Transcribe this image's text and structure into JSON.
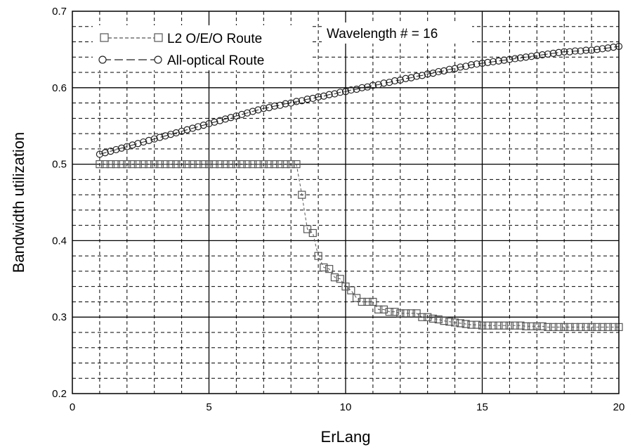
{
  "chart_data": {
    "type": "scatter",
    "xlabel": "ErLang",
    "ylabel": "Bandwidth utilization",
    "xlim": [
      0,
      20
    ],
    "ylim": [
      0.2,
      0.7
    ],
    "xticks": [
      "0",
      "5",
      "10",
      "15",
      "20"
    ],
    "yticks": [
      "0.2",
      "0.3",
      "0.4",
      "0.5",
      "0.6",
      "0.7"
    ],
    "grid": true,
    "legend_position": "top-left",
    "annotation": "Wavelength # = 16",
    "series": [
      {
        "name": "L2 O/E/O Route",
        "marker": "square",
        "line_style": "dashed",
        "color": "#555555",
        "x": [
          1.0,
          1.2,
          1.4,
          1.6,
          1.8,
          2.0,
          2.2,
          2.4,
          2.6,
          2.8,
          3.0,
          3.2,
          3.4,
          3.6,
          3.8,
          4.0,
          4.2,
          4.4,
          4.6,
          4.8,
          5.0,
          5.2,
          5.4,
          5.6,
          5.8,
          6.0,
          6.2,
          6.4,
          6.6,
          6.8,
          7.0,
          7.2,
          7.4,
          7.6,
          7.8,
          8.0,
          8.2,
          8.4,
          8.6,
          8.8,
          9.0,
          9.2,
          9.4,
          9.6,
          9.8,
          10.0,
          10.2,
          10.4,
          10.6,
          10.8,
          11.0,
          11.2,
          11.4,
          11.6,
          11.8,
          12.0,
          12.2,
          12.4,
          12.6,
          12.8,
          13.0,
          13.2,
          13.4,
          13.6,
          13.8,
          14.0,
          14.2,
          14.4,
          14.6,
          14.8,
          15.0,
          15.2,
          15.4,
          15.6,
          15.8,
          16.0,
          16.2,
          16.4,
          16.6,
          16.8,
          17.0,
          17.2,
          17.4,
          17.6,
          17.8,
          18.0,
          18.2,
          18.4,
          18.6,
          18.8,
          19.0,
          19.2,
          19.4,
          19.6,
          19.8,
          20.0
        ],
        "y": [
          0.5,
          0.5,
          0.5,
          0.5,
          0.5,
          0.5,
          0.5,
          0.5,
          0.5,
          0.5,
          0.5,
          0.5,
          0.5,
          0.5,
          0.5,
          0.5,
          0.5,
          0.5,
          0.5,
          0.5,
          0.5,
          0.5,
          0.5,
          0.5,
          0.5,
          0.5,
          0.5,
          0.5,
          0.5,
          0.5,
          0.5,
          0.5,
          0.5,
          0.5,
          0.5,
          0.5,
          0.5,
          0.46,
          0.415,
          0.41,
          0.38,
          0.365,
          0.363,
          0.352,
          0.35,
          0.34,
          0.335,
          0.325,
          0.32,
          0.32,
          0.32,
          0.31,
          0.31,
          0.307,
          0.307,
          0.305,
          0.305,
          0.305,
          0.305,
          0.3,
          0.3,
          0.298,
          0.297,
          0.295,
          0.294,
          0.293,
          0.292,
          0.291,
          0.29,
          0.29,
          0.289,
          0.289,
          0.289,
          0.289,
          0.289,
          0.289,
          0.289,
          0.289,
          0.288,
          0.288,
          0.288,
          0.288,
          0.287,
          0.287,
          0.287,
          0.287,
          0.287,
          0.287,
          0.287,
          0.287,
          0.287,
          0.287,
          0.287,
          0.287,
          0.287,
          0.287
        ]
      },
      {
        "name": "All-optical Route",
        "marker": "circle",
        "line_style": "long-dash",
        "color": "#222222",
        "x": [
          1.0,
          1.2,
          1.4,
          1.6,
          1.8,
          2.0,
          2.2,
          2.4,
          2.6,
          2.8,
          3.0,
          3.2,
          3.4,
          3.6,
          3.8,
          4.0,
          4.2,
          4.4,
          4.6,
          4.8,
          5.0,
          5.2,
          5.4,
          5.6,
          5.8,
          6.0,
          6.2,
          6.4,
          6.6,
          6.8,
          7.0,
          7.2,
          7.4,
          7.6,
          7.8,
          8.0,
          8.2,
          8.4,
          8.6,
          8.8,
          9.0,
          9.2,
          9.4,
          9.6,
          9.8,
          10.0,
          10.2,
          10.4,
          10.6,
          10.8,
          11.0,
          11.2,
          11.4,
          11.6,
          11.8,
          12.0,
          12.2,
          12.4,
          12.6,
          12.8,
          13.0,
          13.2,
          13.4,
          13.6,
          13.8,
          14.0,
          14.2,
          14.4,
          14.6,
          14.8,
          15.0,
          15.2,
          15.4,
          15.6,
          15.8,
          16.0,
          16.2,
          16.4,
          16.6,
          16.8,
          17.0,
          17.2,
          17.4,
          17.6,
          17.8,
          18.0,
          18.2,
          18.4,
          18.6,
          18.8,
          19.0,
          19.2,
          19.4,
          19.6,
          19.8,
          20.0
        ],
        "y": [
          0.513,
          0.515,
          0.517,
          0.519,
          0.521,
          0.523,
          0.525,
          0.527,
          0.529,
          0.531,
          0.533,
          0.535,
          0.537,
          0.539,
          0.541,
          0.543,
          0.545,
          0.547,
          0.549,
          0.551,
          0.553,
          0.555,
          0.557,
          0.559,
          0.561,
          0.563,
          0.565,
          0.567,
          0.569,
          0.571,
          0.573,
          0.574,
          0.576,
          0.577,
          0.579,
          0.58,
          0.582,
          0.583,
          0.585,
          0.586,
          0.588,
          0.589,
          0.591,
          0.592,
          0.594,
          0.595,
          0.597,
          0.598,
          0.6,
          0.601,
          0.603,
          0.604,
          0.606,
          0.607,
          0.609,
          0.61,
          0.612,
          0.613,
          0.615,
          0.616,
          0.618,
          0.619,
          0.621,
          0.622,
          0.624,
          0.625,
          0.627,
          0.628,
          0.63,
          0.631,
          0.632,
          0.633,
          0.634,
          0.635,
          0.636,
          0.637,
          0.638,
          0.639,
          0.64,
          0.641,
          0.642,
          0.643,
          0.644,
          0.645,
          0.646,
          0.647,
          0.647,
          0.648,
          0.648,
          0.649,
          0.649,
          0.65,
          0.651,
          0.652,
          0.653,
          0.654
        ]
      }
    ]
  }
}
